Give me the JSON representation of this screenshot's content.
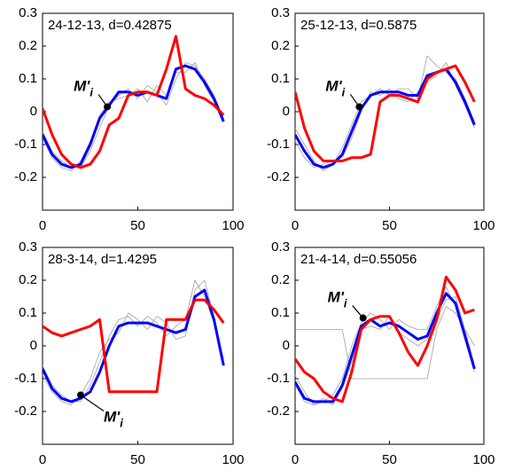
{
  "chart_data": [
    {
      "type": "line",
      "title": "24-12-13, d=0.42875",
      "x": [
        0,
        5,
        10,
        15,
        20,
        25,
        30,
        35,
        40,
        45,
        50,
        55,
        60,
        65,
        70,
        75,
        80,
        85,
        90,
        95
      ],
      "series": [
        {
          "color": "#a0a0a0",
          "values": [
            -0.06,
            -0.12,
            -0.15,
            -0.17,
            -0.17,
            -0.12,
            -0.05,
            0.02,
            0.05,
            0.07,
            0.04,
            0.08,
            0.06,
            0.02,
            0.1,
            0.15,
            0.14,
            0.1,
            0.05,
            -0.02
          ]
        },
        {
          "color": "#a0a0a0",
          "values": [
            -0.08,
            -0.14,
            -0.17,
            -0.18,
            -0.15,
            -0.09,
            -0.01,
            0.03,
            0.04,
            0.05,
            0.07,
            0.03,
            0.08,
            0.05,
            0.12,
            0.12,
            0.15,
            0.08,
            0.03,
            -0.03
          ]
        },
        {
          "color": "#0000ff",
          "values": [
            -0.07,
            -0.13,
            -0.16,
            -0.17,
            -0.16,
            -0.1,
            -0.02,
            0.02,
            0.06,
            0.06,
            0.05,
            0.06,
            0.05,
            0.04,
            0.13,
            0.14,
            0.13,
            0.09,
            0.04,
            -0.03
          ]
        },
        {
          "color": "#ff0000",
          "values": [
            0.01,
            -0.07,
            -0.13,
            -0.16,
            -0.17,
            -0.16,
            -0.12,
            -0.04,
            -0.02,
            0.05,
            0.06,
            0.06,
            0.05,
            0.13,
            0.23,
            0.07,
            0.05,
            0.04,
            0.02,
            -0.01
          ]
        }
      ],
      "annotation": {
        "label": "M'",
        "subscript": "i",
        "x": 34,
        "y": 0.015
      },
      "xlim": [
        0,
        100
      ],
      "ylim": [
        -0.3,
        0.3
      ],
      "xticks": [
        0,
        50,
        100
      ],
      "yticks": [
        -0.2,
        -0.1,
        0,
        0.1,
        0.2,
        0.3
      ]
    },
    {
      "type": "line",
      "title": "25-12-13, d=0.5875",
      "x": [
        0,
        5,
        10,
        15,
        20,
        25,
        30,
        35,
        40,
        45,
        50,
        55,
        60,
        65,
        70,
        75,
        80,
        85,
        90,
        95
      ],
      "series": [
        {
          "color": "#a0a0a0",
          "values": [
            -0.05,
            -0.1,
            -0.15,
            -0.18,
            -0.16,
            -0.11,
            -0.04,
            0.03,
            0.05,
            0.07,
            0.05,
            0.07,
            0.07,
            0.04,
            0.17,
            0.14,
            0.12,
            0.1,
            0.04,
            -0.03
          ]
        },
        {
          "color": "#a0a0a0",
          "values": [
            -0.09,
            -0.14,
            -0.17,
            -0.16,
            -0.15,
            -0.14,
            -0.08,
            0.0,
            0.06,
            0.05,
            0.07,
            0.04,
            0.03,
            0.06,
            0.09,
            0.11,
            0.15,
            0.08,
            0.02,
            -0.05
          ]
        },
        {
          "color": "#0000ff",
          "values": [
            -0.07,
            -0.12,
            -0.16,
            -0.17,
            -0.16,
            -0.13,
            -0.06,
            0.01,
            0.05,
            0.06,
            0.06,
            0.06,
            0.05,
            0.05,
            0.11,
            0.12,
            0.13,
            0.09,
            0.03,
            -0.04
          ]
        },
        {
          "color": "#ff0000",
          "values": [
            0.06,
            -0.05,
            -0.12,
            -0.15,
            -0.15,
            -0.15,
            -0.14,
            -0.14,
            -0.13,
            0.03,
            0.05,
            0.05,
            0.04,
            0.03,
            0.1,
            0.12,
            0.13,
            0.14,
            0.09,
            0.03
          ]
        }
      ],
      "annotation": {
        "label": "M'",
        "subscript": "i",
        "x": 34,
        "y": 0.015
      },
      "xlim": [
        0,
        100
      ],
      "ylim": [
        -0.3,
        0.3
      ],
      "xticks": [
        0,
        50,
        100
      ],
      "yticks": [
        -0.2,
        -0.1,
        0,
        0.1,
        0.2,
        0.3
      ]
    },
    {
      "type": "line",
      "title": "28-3-14, d=1.4295",
      "x": [
        0,
        5,
        10,
        15,
        20,
        25,
        30,
        35,
        40,
        45,
        50,
        55,
        60,
        65,
        70,
        75,
        80,
        85,
        90,
        95
      ],
      "series": [
        {
          "color": "#a0a0a0",
          "values": [
            -0.06,
            -0.12,
            -0.15,
            -0.17,
            -0.17,
            -0.12,
            -0.05,
            0.03,
            0.08,
            0.09,
            0.06,
            0.09,
            0.07,
            0.03,
            0.06,
            0.08,
            0.2,
            0.15,
            0.07,
            -0.04
          ]
        },
        {
          "color": "#a0a0a0",
          "values": [
            -0.09,
            -0.14,
            -0.17,
            -0.18,
            -0.15,
            -0.1,
            -0.02,
            0.02,
            0.04,
            0.1,
            0.08,
            0.05,
            0.09,
            0.07,
            0.02,
            0.03,
            0.17,
            0.2,
            0.09,
            -0.05
          ]
        },
        {
          "color": "#0000ff",
          "values": [
            -0.07,
            -0.13,
            -0.16,
            -0.17,
            -0.16,
            -0.14,
            -0.08,
            0.0,
            0.06,
            0.07,
            0.07,
            0.07,
            0.06,
            0.05,
            0.04,
            0.05,
            0.15,
            0.17,
            0.08,
            -0.06
          ]
        },
        {
          "color": "#ff0000",
          "values": [
            0.06,
            0.04,
            0.03,
            0.04,
            0.05,
            0.06,
            0.08,
            -0.14,
            -0.14,
            -0.14,
            -0.14,
            -0.14,
            -0.14,
            0.08,
            0.08,
            0.08,
            0.14,
            0.14,
            0.11,
            0.07
          ]
        }
      ],
      "annotation": {
        "label": "M'",
        "subscript": "i",
        "x": 20,
        "y": -0.15
      },
      "xlim": [
        0,
        100
      ],
      "ylim": [
        -0.3,
        0.3
      ],
      "xticks": [
        0,
        50,
        100
      ],
      "yticks": [
        -0.2,
        -0.1,
        0,
        0.1,
        0.2,
        0.3
      ]
    },
    {
      "type": "line",
      "title": "21-4-14, d=0.55056",
      "x": [
        0,
        5,
        10,
        15,
        20,
        25,
        30,
        35,
        40,
        45,
        50,
        55,
        60,
        65,
        70,
        75,
        80,
        85,
        90,
        95
      ],
      "series": [
        {
          "color": "#a0a0a0",
          "values": [
            0.05,
            0.05,
            0.05,
            0.05,
            0.05,
            0.05,
            -0.1,
            -0.1,
            -0.1,
            -0.1,
            -0.1,
            -0.1,
            -0.1,
            -0.1,
            -0.1,
            0.05,
            0.12,
            0.1,
            0.05,
            0.0
          ]
        },
        {
          "color": "#a0a0a0",
          "values": [
            -0.09,
            -0.14,
            -0.18,
            -0.17,
            -0.15,
            -0.1,
            0.0,
            0.07,
            0.1,
            0.08,
            0.05,
            0.08,
            0.06,
            0.05,
            0.05,
            0.12,
            0.18,
            0.12,
            0.02,
            -0.08
          ]
        },
        {
          "color": "#a0a0a0",
          "values": [
            -0.12,
            -0.17,
            -0.18,
            -0.16,
            -0.18,
            -0.13,
            -0.05,
            0.05,
            0.06,
            0.05,
            0.09,
            0.04,
            0.02,
            0.0,
            0.02,
            0.08,
            0.14,
            0.15,
            0.05,
            -0.06
          ]
        },
        {
          "color": "#0000ff",
          "values": [
            -0.11,
            -0.16,
            -0.17,
            -0.17,
            -0.17,
            -0.12,
            -0.03,
            0.06,
            0.08,
            0.06,
            0.07,
            0.06,
            0.04,
            0.02,
            0.03,
            0.1,
            0.16,
            0.13,
            0.03,
            -0.07
          ]
        },
        {
          "color": "#ff0000",
          "values": [
            -0.04,
            -0.08,
            -0.1,
            -0.14,
            -0.16,
            -0.17,
            -0.08,
            0.05,
            0.08,
            0.09,
            0.09,
            0.04,
            -0.02,
            -0.06,
            0.0,
            0.08,
            0.21,
            0.17,
            0.1,
            0.11
          ]
        }
      ],
      "annotation": {
        "label": "M'",
        "subscript": "i",
        "x": 36,
        "y": 0.085
      },
      "xlim": [
        0,
        100
      ],
      "ylim": [
        -0.3,
        0.3
      ],
      "xticks": [
        0,
        50,
        100
      ],
      "yticks": [
        -0.2,
        -0.1,
        0,
        0.1,
        0.2,
        0.3
      ]
    }
  ]
}
